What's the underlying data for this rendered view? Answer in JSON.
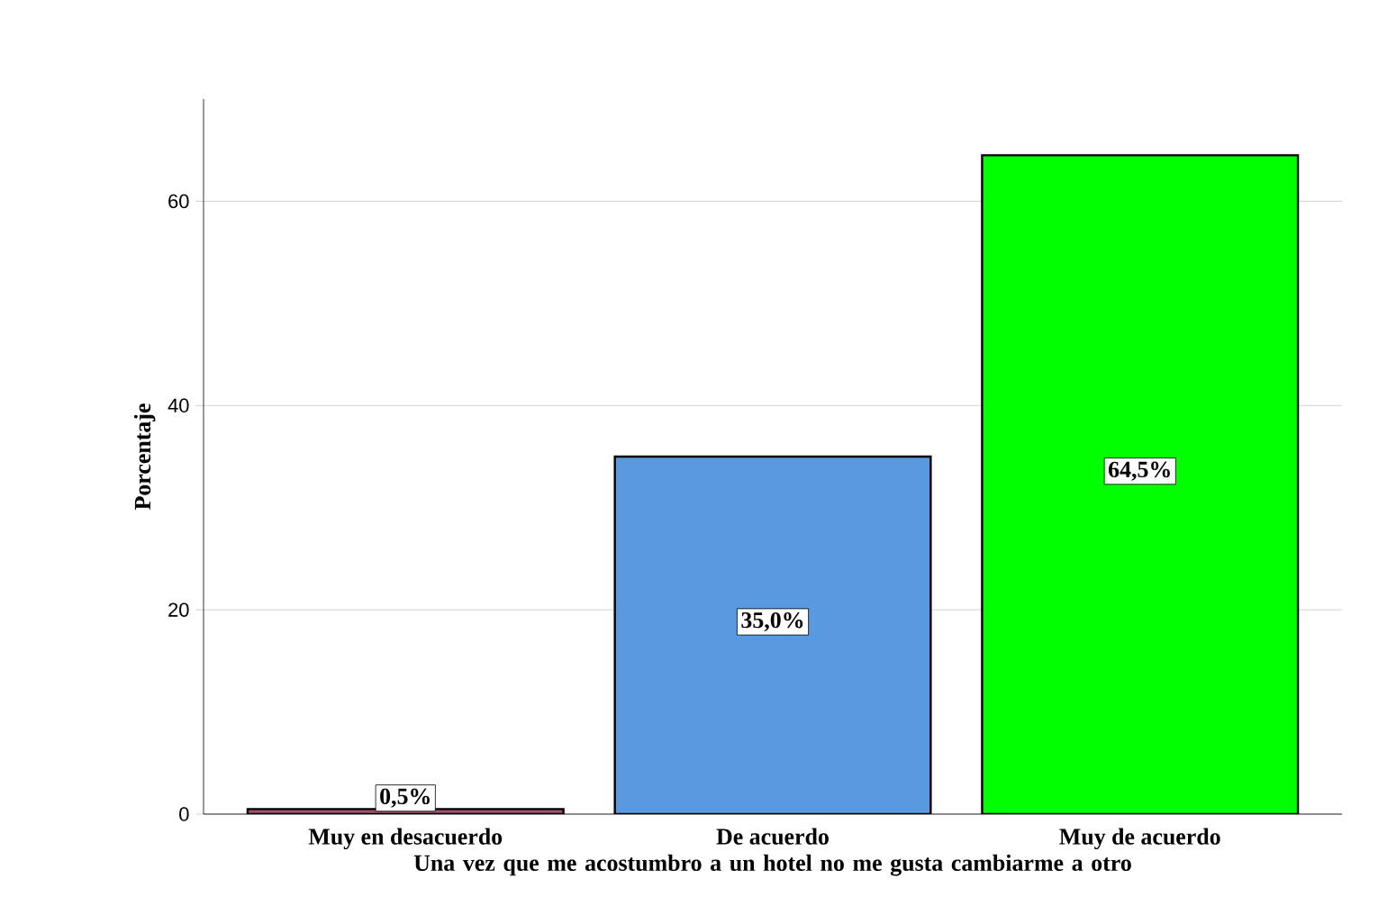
{
  "chart_data": {
    "type": "bar",
    "categories": [
      "Muy en desacuerdo",
      "De acuerdo",
      "Muy de acuerdo"
    ],
    "values": [
      0.5,
      35.0,
      64.5
    ],
    "value_labels": [
      "0,5%",
      "35,0%",
      "64,5%"
    ],
    "colors": [
      "#a0506e",
      "#5899e0",
      "#00ff00"
    ],
    "xlabel": "Una vez que me acostumbro a un hotel no me gusta cambiarme a otro",
    "ylabel": "Porcentaje",
    "ylim": [
      0,
      70
    ],
    "yticks": [
      0,
      20,
      40,
      60
    ],
    "grid": "y"
  }
}
